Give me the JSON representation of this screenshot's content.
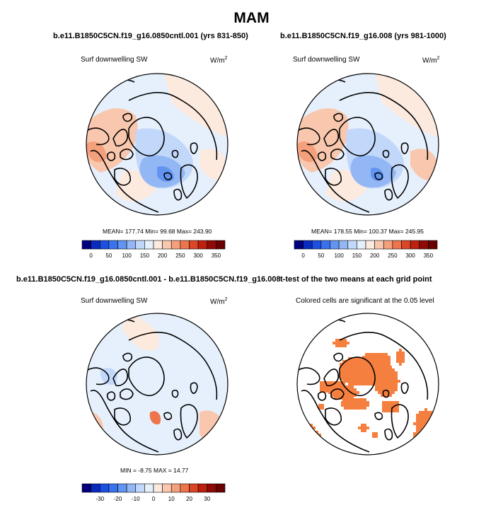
{
  "figure": {
    "title": "MAM"
  },
  "panels": [
    {
      "title": "b.e11.B1850C5CN.f19_g16.0850cntl.001 (yrs 831-850)",
      "variable": "Surf downwelling SW",
      "units": "W/m",
      "units_exp": "2",
      "stats": "MEAN= 177.74  Min=  99.68  Max= 243.90"
    },
    {
      "title": "b.e11.B1850C5CN.f19_g16.008 (yrs 981-1000)",
      "variable": "Surf downwelling SW",
      "units": "W/m",
      "units_exp": "2",
      "stats": "MEAN= 178.55  Min= 100.37  Max= 245.95"
    },
    {
      "title": "b.e11.B1850C5CN.f19_g16.0850cntl.001 - b.e11.B1850C5CN.f19_g16.008",
      "variable": "Surf downwelling SW",
      "units": "W/m",
      "units_exp": "2",
      "stats": "MIN =  -8.75  MAX =  14.77"
    },
    {
      "title": "t-test of the two means at each grid point",
      "variable": "Colored cells are significant at the 0.05 level"
    }
  ],
  "chart_data": [
    {
      "type": "heatmap",
      "projection": "north polar stereographic",
      "title": "b.e11.B1850C5CN.f19_g16.0850cntl.001 (yrs 831-850)",
      "variable": "Surf downwelling SW",
      "units": "W/m2",
      "mean": 177.74,
      "min": 99.68,
      "max": 243.9,
      "colorbar": {
        "levels": [
          0,
          25,
          50,
          75,
          100,
          125,
          150,
          175,
          200,
          225,
          250,
          275,
          300,
          325,
          350
        ],
        "tick_labels": [
          "0",
          "50",
          "100",
          "150",
          "200",
          "250",
          "300",
          "350"
        ],
        "colors": [
          "#00007f",
          "#0a2bbf",
          "#1d4fe0",
          "#3a72ee",
          "#6294f2",
          "#93b7f5",
          "#c2d8fa",
          "#e6f0fd",
          "#fdeadf",
          "#f9c7ad",
          "#f4a07c",
          "#ec754e",
          "#da4626",
          "#bd200f",
          "#8e0a05",
          "#6b0000"
        ]
      }
    },
    {
      "type": "heatmap",
      "projection": "north polar stereographic",
      "title": "b.e11.B1850C5CN.f19_g16.008 (yrs 981-1000)",
      "variable": "Surf downwelling SW",
      "units": "W/m2",
      "mean": 178.55,
      "min": 100.37,
      "max": 245.95,
      "colorbar": {
        "levels": [
          0,
          25,
          50,
          75,
          100,
          125,
          150,
          175,
          200,
          225,
          250,
          275,
          300,
          325,
          350
        ],
        "tick_labels": [
          "0",
          "50",
          "100",
          "150",
          "200",
          "250",
          "300",
          "350"
        ],
        "colors": [
          "#00007f",
          "#0a2bbf",
          "#1d4fe0",
          "#3a72ee",
          "#6294f2",
          "#93b7f5",
          "#c2d8fa",
          "#e6f0fd",
          "#fdeadf",
          "#f9c7ad",
          "#f4a07c",
          "#ec754e",
          "#da4626",
          "#bd200f",
          "#8e0a05",
          "#6b0000"
        ]
      }
    },
    {
      "type": "heatmap",
      "projection": "north polar stereographic",
      "title": "b.e11.B1850C5CN.f19_g16.0850cntl.001 - b.e11.B1850C5CN.f19_g16.008",
      "variable": "Surf downwelling SW",
      "units": "W/m2",
      "min": -8.75,
      "max": 14.77,
      "colorbar": {
        "levels": [
          -35,
          -30,
          -25,
          -20,
          -15,
          -10,
          -5,
          0,
          5,
          10,
          15,
          20,
          25,
          30,
          35
        ],
        "tick_labels": [
          "-30",
          "-20",
          "-10",
          "0",
          "10",
          "20",
          "30"
        ],
        "tick_values": [
          -30,
          -20,
          -10,
          0,
          10,
          20,
          30
        ],
        "colors": [
          "#00007f",
          "#0a2bbf",
          "#1d4fe0",
          "#3a72ee",
          "#6294f2",
          "#93b7f5",
          "#c2d8fa",
          "#e6f0fd",
          "#fdeadf",
          "#f9c7ad",
          "#f4a07c",
          "#ec754e",
          "#da4626",
          "#bd200f",
          "#8e0a05",
          "#6b0000"
        ]
      }
    },
    {
      "type": "heatmap",
      "projection": "north polar stereographic",
      "title": "t-test of the two means at each grid point",
      "subtitle": "Colored cells are significant at the 0.05 level",
      "significant_color": "#f57f3e"
    }
  ]
}
